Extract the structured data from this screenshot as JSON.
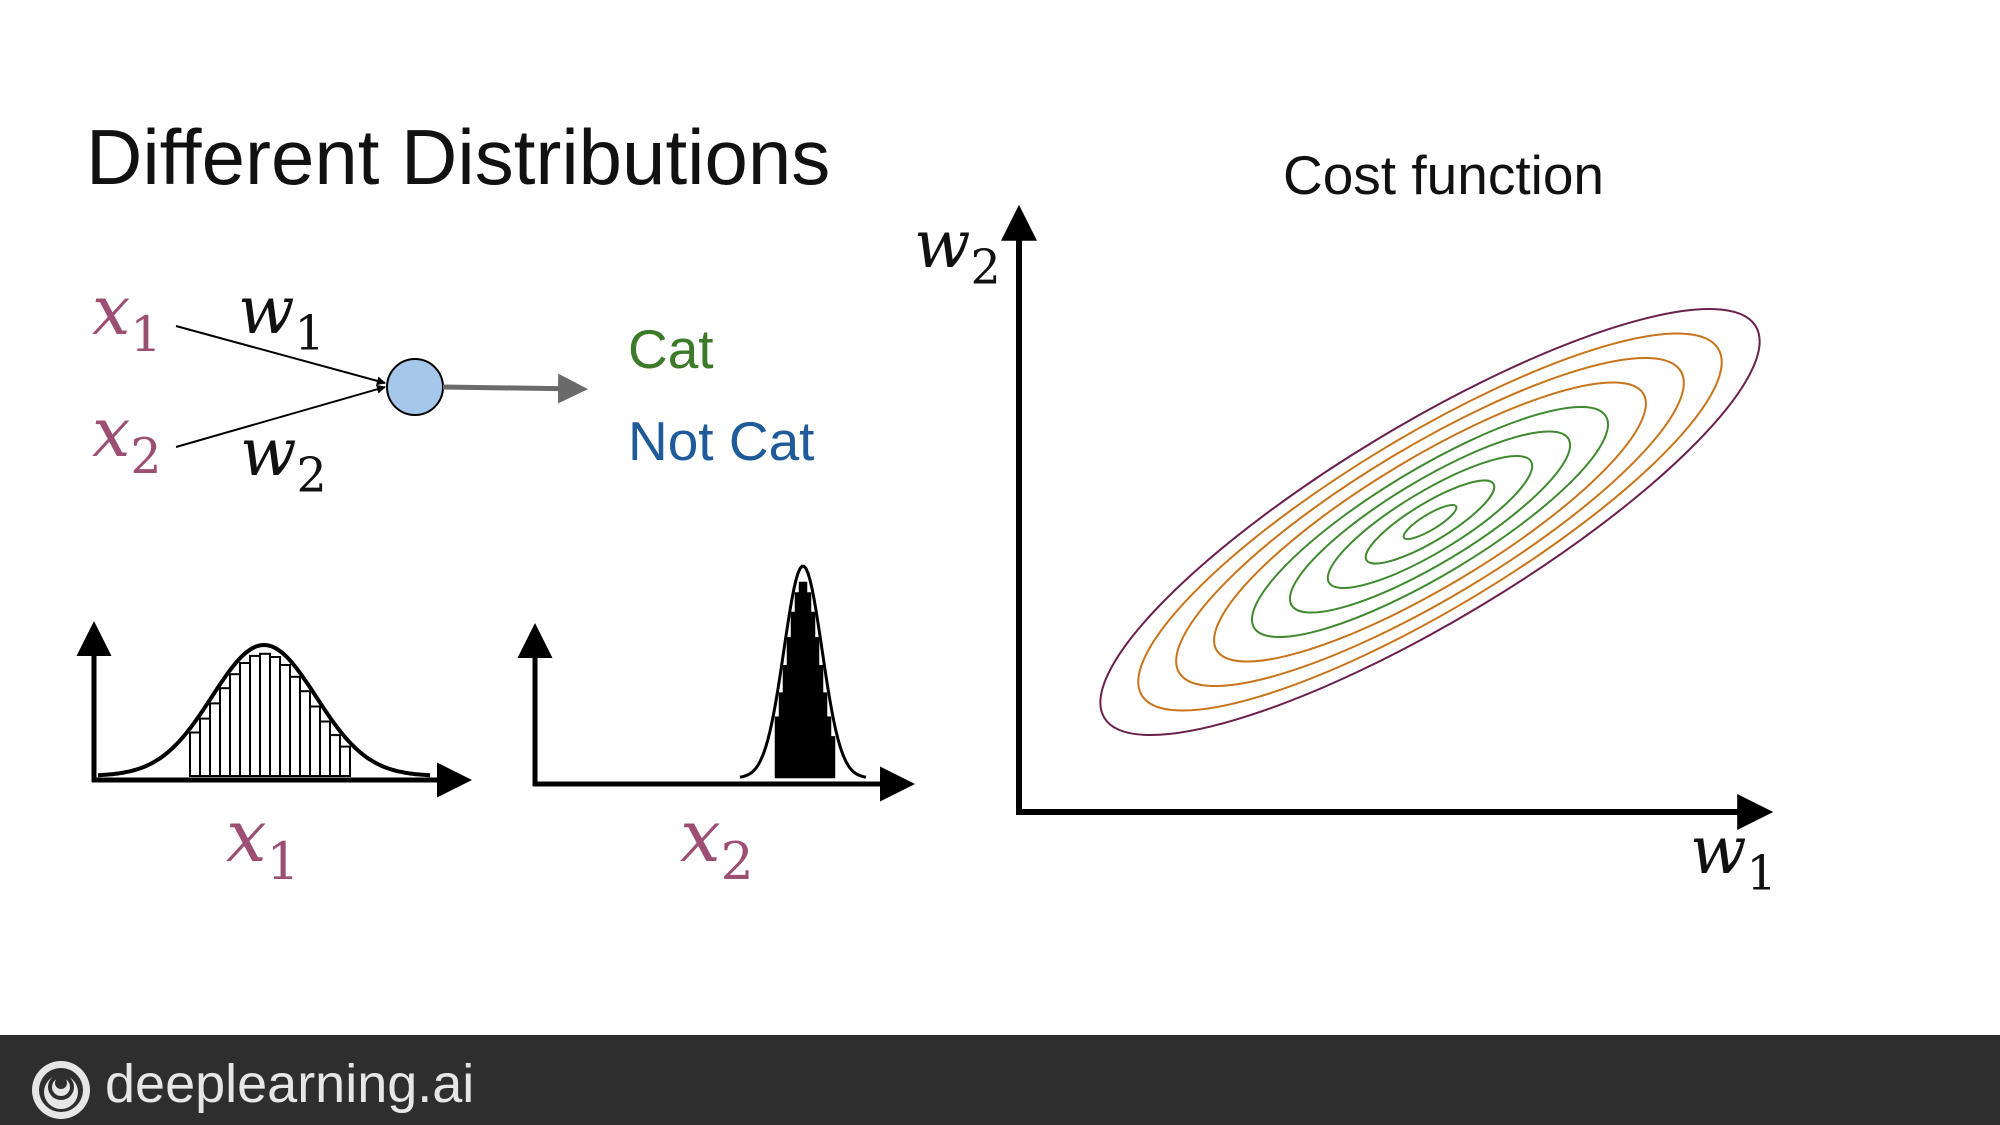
{
  "slide": {
    "title": "Different Distributions",
    "cost_title": "Cost function"
  },
  "network": {
    "inputs": [
      {
        "symbol": "x",
        "index": "1"
      },
      {
        "symbol": "x",
        "index": "2"
      }
    ],
    "weights": [
      {
        "symbol": "w",
        "index": "1"
      },
      {
        "symbol": "w",
        "index": "2"
      }
    ],
    "outputs": [
      {
        "label": "Cat",
        "color": "#3d7a2a"
      },
      {
        "label": "Not Cat",
        "color": "#1f5a99"
      }
    ],
    "input_color": "#9c4f72",
    "neuron_color": "#a4c7ea"
  },
  "distributions": [
    {
      "axis_symbol": "x",
      "axis_index": "1",
      "shape": "wide"
    },
    {
      "axis_symbol": "x",
      "axis_index": "2",
      "shape": "narrow"
    }
  ],
  "cost_plot": {
    "x_axis": {
      "symbol": "w",
      "index": "1"
    },
    "y_axis": {
      "symbol": "w",
      "index": "2"
    },
    "contour_colors": [
      "#6b1f4d",
      "#c8741a",
      "#c8741a",
      "#c8741a",
      "#3f8a2e",
      "#3f8a2e",
      "#3f8a2e",
      "#3f8a2e",
      "#3f8a2e"
    ]
  },
  "footer": {
    "brand": "deeplearning.ai",
    "logo_icon": "deeplearning-logo-icon",
    "background": "#2e2e2e"
  }
}
